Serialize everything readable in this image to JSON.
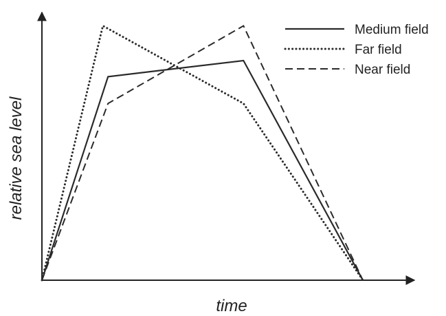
{
  "chart_data": {
    "type": "line",
    "title": "",
    "xlabel": "time",
    "ylabel": "relative sea level",
    "xlim": [
      0,
      10
    ],
    "ylim": [
      0,
      10
    ],
    "grid": false,
    "legend_position": "top-right",
    "series": [
      {
        "name": "Medium field",
        "style": "solid",
        "x": [
          0,
          2.06,
          6.28,
          10.0
        ],
        "y": [
          0,
          7.6,
          8.2,
          0
        ]
      },
      {
        "name": "Far field",
        "style": "dotted",
        "x": [
          0,
          1.9,
          6.28,
          10.0
        ],
        "y": [
          0,
          9.5,
          6.6,
          0
        ]
      },
      {
        "name": "Near field",
        "style": "dashed",
        "x": [
          0,
          2.06,
          6.28,
          10.0
        ],
        "y": [
          0,
          6.6,
          9.5,
          0
        ]
      }
    ]
  }
}
